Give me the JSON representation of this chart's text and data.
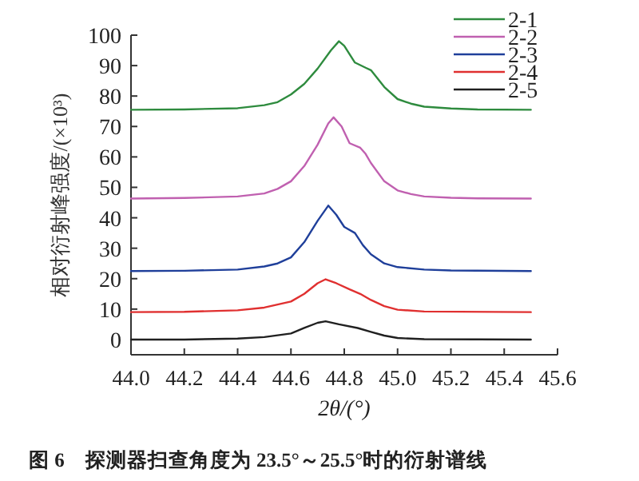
{
  "chart_data": {
    "type": "line",
    "xlabel": "2θ/(°)",
    "ylabel": "相对衍射峰强度/(×10³)",
    "annotations": [
      "图 6　探测器扫查角度为 23.5°～25.5°时的衍射谱线"
    ],
    "xlim": [
      44.0,
      45.6
    ],
    "ylim": [
      -5,
      100
    ],
    "xticks": [
      {
        "value": 44,
        "label": "44.0"
      },
      44.2,
      44.4,
      44.6,
      44.8,
      {
        "value": 45,
        "label": "45.0"
      },
      45.2,
      45.4,
      45.6
    ],
    "yticks": [
      0,
      10,
      20,
      30,
      40,
      50,
      60,
      70,
      80,
      90,
      100
    ],
    "grid": false,
    "legend": "top right",
    "marker": "none",
    "line_style": "solid",
    "series": [
      {
        "name": "2-1",
        "color": "#2e8b3e",
        "x": [
          44.0,
          44.2,
          44.4,
          44.5,
          44.55,
          44.6,
          44.65,
          44.7,
          44.75,
          44.78,
          44.8,
          44.84,
          44.88,
          44.9,
          44.95,
          45.0,
          45.05,
          45.1,
          45.2,
          45.3,
          45.5
        ],
        "values": [
          75.5,
          75.6,
          76.0,
          77,
          78,
          80.5,
          84,
          89,
          95,
          98,
          96.5,
          91,
          89.3,
          88.5,
          83,
          79,
          77.5,
          76.5,
          75.9,
          75.6,
          75.5
        ]
      },
      {
        "name": "2-2",
        "color": "#c060b0",
        "x": [
          44.0,
          44.2,
          44.4,
          44.5,
          44.55,
          44.6,
          44.65,
          44.7,
          44.74,
          44.76,
          44.79,
          44.82,
          44.86,
          44.88,
          44.9,
          44.95,
          45.0,
          45.05,
          45.1,
          45.2,
          45.3,
          45.5
        ],
        "values": [
          46.3,
          46.5,
          47,
          48,
          49.5,
          52,
          57,
          64,
          71,
          73,
          70,
          64.5,
          63,
          61,
          58,
          52,
          49,
          47.8,
          47,
          46.6,
          46.4,
          46.3
        ]
      },
      {
        "name": "2-3",
        "color": "#1f3f9a",
        "x": [
          44.0,
          44.2,
          44.4,
          44.5,
          44.55,
          44.6,
          44.65,
          44.7,
          44.74,
          44.77,
          44.8,
          44.84,
          44.87,
          44.9,
          44.95,
          45.0,
          45.1,
          45.2,
          45.5
        ],
        "values": [
          22.5,
          22.6,
          23,
          24,
          25,
          27,
          32,
          39,
          44,
          41,
          37,
          35,
          31,
          28,
          25,
          23.8,
          23,
          22.7,
          22.5
        ]
      },
      {
        "name": "2-4",
        "color": "#e03030",
        "x": [
          44.0,
          44.2,
          44.4,
          44.5,
          44.6,
          44.65,
          44.7,
          44.73,
          44.77,
          44.82,
          44.86,
          44.9,
          44.95,
          45.0,
          45.1,
          45.5
        ],
        "values": [
          9,
          9.1,
          9.6,
          10.5,
          12.5,
          15,
          18.5,
          19.8,
          18.5,
          16.5,
          15,
          13,
          11,
          9.8,
          9.2,
          9
        ]
      },
      {
        "name": "2-5",
        "color": "#202020",
        "x": [
          44.0,
          44.2,
          44.4,
          44.5,
          44.6,
          44.65,
          44.7,
          44.73,
          44.78,
          44.85,
          44.9,
          44.95,
          45.0,
          45.1,
          45.5
        ],
        "values": [
          0,
          0,
          0.3,
          0.8,
          2,
          3.8,
          5.5,
          6,
          5,
          3.8,
          2.5,
          1.3,
          0.5,
          0.1,
          0
        ]
      }
    ]
  }
}
